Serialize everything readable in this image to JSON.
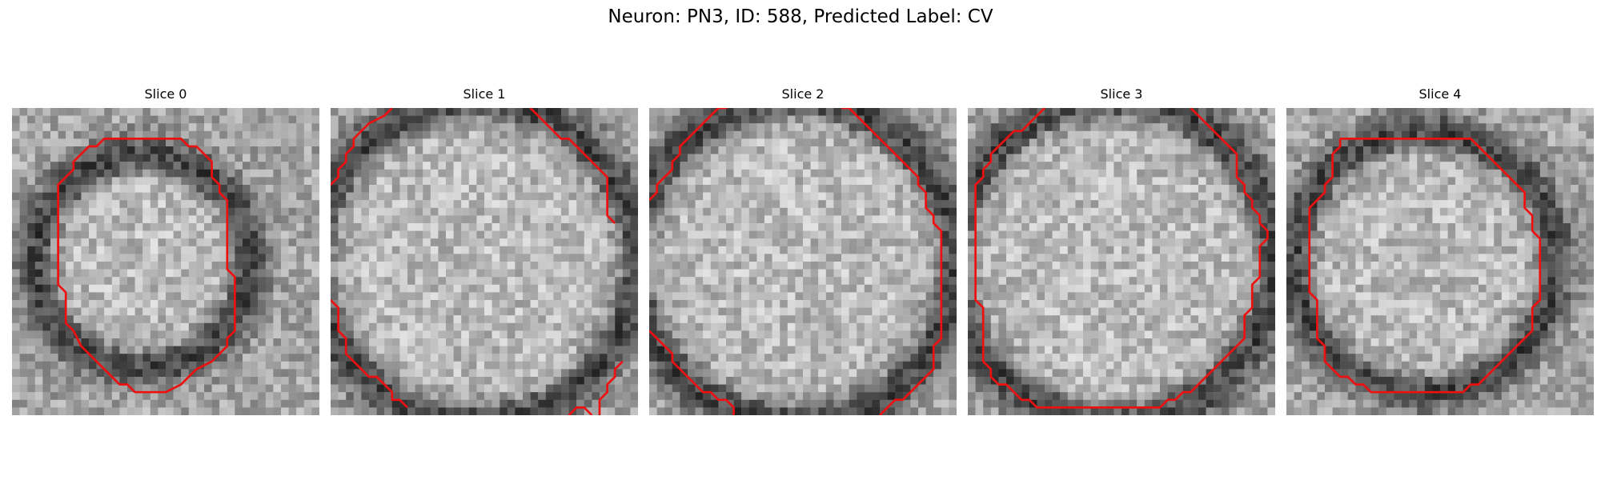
{
  "figure": {
    "title": "Neuron: PN3, ID: 588, Predicted Label: CV",
    "panels": [
      {
        "title": "Slice 0",
        "contour": [
          [
            14,
            4
          ],
          [
            22,
            4
          ],
          [
            23,
            5
          ],
          [
            24,
            5
          ],
          [
            25,
            6
          ],
          [
            26,
            7
          ],
          [
            26,
            9
          ],
          [
            27,
            10
          ],
          [
            27,
            11
          ],
          [
            28,
            12
          ],
          [
            28,
            21
          ],
          [
            29,
            22
          ],
          [
            29,
            29
          ],
          [
            28,
            30
          ],
          [
            28,
            31
          ],
          [
            27,
            32
          ],
          [
            26,
            33
          ],
          [
            24,
            34
          ],
          [
            23,
            35
          ],
          [
            22,
            36
          ],
          [
            20,
            37
          ],
          [
            17,
            37
          ],
          [
            16,
            37
          ],
          [
            15,
            36
          ],
          [
            14,
            36
          ],
          [
            13,
            35
          ],
          [
            12,
            34
          ],
          [
            11,
            33
          ],
          [
            10,
            32
          ],
          [
            9,
            31
          ],
          [
            8,
            29
          ],
          [
            7,
            28
          ],
          [
            7,
            24
          ],
          [
            6,
            23
          ],
          [
            6,
            18
          ],
          [
            6,
            11
          ],
          [
            6,
            10
          ],
          [
            7,
            9
          ],
          [
            8,
            8
          ],
          [
            8,
            7
          ],
          [
            9,
            6
          ],
          [
            10,
            5
          ],
          [
            11,
            5
          ],
          [
            12,
            4
          ],
          [
            13,
            4
          ],
          [
            14,
            4
          ]
        ]
      },
      {
        "title": "Slice 1",
        "contour": [
          [
            0,
            10
          ],
          [
            1,
            9
          ],
          [
            1,
            8
          ],
          [
            2,
            7
          ],
          [
            2,
            6
          ],
          [
            3,
            5
          ],
          [
            3,
            4
          ],
          [
            4,
            3
          ],
          [
            5,
            2
          ],
          [
            7,
            1
          ],
          [
            8,
            0
          ]
        ],
        "contour2": [
          [
            26,
            0
          ],
          [
            27,
            1
          ],
          [
            28,
            2
          ],
          [
            29,
            3
          ],
          [
            30,
            4
          ],
          [
            31,
            4
          ],
          [
            32,
            5
          ],
          [
            33,
            6
          ],
          [
            34,
            7
          ],
          [
            35,
            8
          ],
          [
            36,
            9
          ],
          [
            36,
            14
          ],
          [
            37,
            15
          ]
        ],
        "contour3": [
          [
            0,
            25
          ],
          [
            1,
            26
          ],
          [
            1,
            29
          ],
          [
            2,
            30
          ],
          [
            2,
            32
          ],
          [
            3,
            33
          ],
          [
            4,
            34
          ],
          [
            5,
            35
          ],
          [
            6,
            35
          ],
          [
            7,
            36
          ],
          [
            8,
            37
          ],
          [
            8,
            38
          ],
          [
            9,
            38
          ],
          [
            10,
            39
          ]
        ],
        "contour4": [
          [
            31,
            40
          ],
          [
            32,
            39
          ],
          [
            33,
            39
          ],
          [
            34,
            40
          ]
        ],
        "contour5": [
          [
            35,
            40
          ],
          [
            35,
            38
          ],
          [
            36,
            37
          ],
          [
            36,
            36
          ],
          [
            37,
            35
          ],
          [
            37,
            34
          ],
          [
            38,
            33
          ]
        ]
      },
      {
        "title": "Slice 2",
        "contour": [
          [
            0,
            12
          ],
          [
            1,
            11
          ],
          [
            1,
            10
          ],
          [
            2,
            9
          ],
          [
            3,
            8
          ],
          [
            3,
            7
          ],
          [
            4,
            6
          ],
          [
            4,
            5
          ],
          [
            5,
            4
          ],
          [
            6,
            3
          ],
          [
            7,
            2
          ],
          [
            8,
            1
          ],
          [
            9,
            0
          ],
          [
            10,
            0
          ],
          [
            11,
            -1
          ]
        ],
        "contour2": [
          [
            25,
            0
          ],
          [
            26,
            0
          ],
          [
            27,
            1
          ],
          [
            28,
            2
          ],
          [
            29,
            3
          ],
          [
            30,
            4
          ],
          [
            31,
            5
          ],
          [
            32,
            6
          ],
          [
            33,
            7
          ],
          [
            34,
            8
          ],
          [
            35,
            9
          ],
          [
            35,
            10
          ],
          [
            36,
            11
          ],
          [
            36,
            13
          ],
          [
            37,
            14
          ],
          [
            37,
            15
          ],
          [
            38,
            16
          ],
          [
            38,
            30
          ],
          [
            37,
            31
          ],
          [
            37,
            34
          ],
          [
            36,
            35
          ],
          [
            35,
            36
          ],
          [
            34,
            37
          ],
          [
            33,
            38
          ],
          [
            32,
            38
          ],
          [
            31,
            39
          ],
          [
            30,
            40
          ]
        ],
        "contour3": [
          [
            0,
            29
          ],
          [
            1,
            30
          ],
          [
            2,
            31
          ],
          [
            3,
            32
          ],
          [
            3,
            33
          ],
          [
            4,
            34
          ],
          [
            5,
            35
          ],
          [
            6,
            36
          ],
          [
            7,
            37
          ],
          [
            8,
            37
          ],
          [
            9,
            38
          ],
          [
            10,
            38
          ],
          [
            11,
            39
          ],
          [
            11,
            40
          ]
        ]
      },
      {
        "title": "Slice 3",
        "contour": [
          [
            10,
            0
          ],
          [
            9,
            1
          ],
          [
            8,
            2
          ],
          [
            7,
            3
          ],
          [
            6,
            3
          ],
          [
            5,
            4
          ],
          [
            4,
            5
          ],
          [
            3,
            6
          ],
          [
            3,
            7
          ],
          [
            2,
            8
          ],
          [
            2,
            9
          ],
          [
            1,
            10
          ],
          [
            1,
            25
          ],
          [
            2,
            26
          ],
          [
            2,
            33
          ],
          [
            3,
            34
          ],
          [
            3,
            35
          ],
          [
            4,
            36
          ],
          [
            5,
            36
          ],
          [
            6,
            37
          ],
          [
            7,
            38
          ],
          [
            8,
            38
          ],
          [
            9,
            39
          ],
          [
            25,
            39
          ],
          [
            26,
            38
          ],
          [
            27,
            38
          ],
          [
            28,
            37
          ],
          [
            29,
            37
          ],
          [
            30,
            36
          ],
          [
            31,
            35
          ],
          [
            32,
            34
          ],
          [
            33,
            33
          ],
          [
            34,
            32
          ],
          [
            35,
            31
          ],
          [
            36,
            30
          ],
          [
            36,
            27
          ],
          [
            37,
            26
          ],
          [
            37,
            23
          ],
          [
            38,
            22
          ],
          [
            38,
            18
          ],
          [
            39,
            17
          ],
          [
            39,
            16
          ],
          [
            38,
            15
          ],
          [
            38,
            14
          ],
          [
            37,
            13
          ],
          [
            37,
            12
          ],
          [
            36,
            11
          ],
          [
            36,
            10
          ],
          [
            35,
            9
          ],
          [
            35,
            6
          ],
          [
            34,
            5
          ],
          [
            33,
            4
          ],
          [
            32,
            3
          ],
          [
            31,
            2
          ],
          [
            30,
            1
          ],
          [
            29,
            0
          ]
        ]
      },
      {
        "title": "Slice 4",
        "contour": [
          [
            7,
            4
          ],
          [
            24,
            4
          ],
          [
            25,
            5
          ],
          [
            26,
            6
          ],
          [
            27,
            7
          ],
          [
            28,
            8
          ],
          [
            29,
            9
          ],
          [
            30,
            10
          ],
          [
            31,
            11
          ],
          [
            31,
            13
          ],
          [
            32,
            14
          ],
          [
            32,
            16
          ],
          [
            33,
            17
          ],
          [
            33,
            25
          ],
          [
            32,
            26
          ],
          [
            32,
            29
          ],
          [
            31,
            30
          ],
          [
            30,
            31
          ],
          [
            29,
            32
          ],
          [
            28,
            33
          ],
          [
            27,
            34
          ],
          [
            26,
            35
          ],
          [
            25,
            36
          ],
          [
            24,
            36
          ],
          [
            23,
            37
          ],
          [
            11,
            37
          ],
          [
            10,
            36
          ],
          [
            9,
            36
          ],
          [
            8,
            35
          ],
          [
            7,
            35
          ],
          [
            6,
            34
          ],
          [
            5,
            33
          ],
          [
            5,
            31
          ],
          [
            4,
            30
          ],
          [
            4,
            25
          ],
          [
            3,
            24
          ],
          [
            3,
            13
          ],
          [
            4,
            12
          ],
          [
            5,
            11
          ],
          [
            5,
            10
          ],
          [
            6,
            9
          ],
          [
            6,
            8
          ],
          [
            6,
            6
          ],
          [
            7,
            5
          ],
          [
            7,
            4
          ]
        ]
      }
    ],
    "colors": {
      "contour": "#ee1010",
      "background": "#ffffff"
    }
  }
}
